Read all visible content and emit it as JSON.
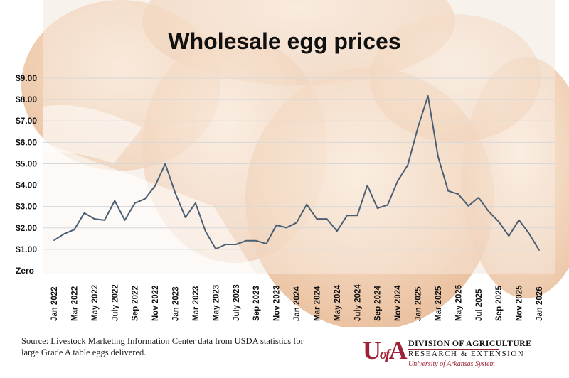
{
  "chart_data": {
    "type": "line",
    "title": "Wholesale egg prices",
    "xlabel": "",
    "ylabel": "",
    "ylim": [
      0,
      9
    ],
    "y_ticks": [
      {
        "value": 0,
        "label": "Zero"
      },
      {
        "value": 1,
        "label": "$1.00"
      },
      {
        "value": 2,
        "label": "$2.00"
      },
      {
        "value": 3,
        "label": "$3.00"
      },
      {
        "value": 4,
        "label": "$4.00"
      },
      {
        "value": 5,
        "label": "$5.00"
      },
      {
        "value": 6,
        "label": "$6.00"
      },
      {
        "value": 7,
        "label": "$7.00"
      },
      {
        "value": 8,
        "label": "$8.00"
      },
      {
        "value": 9,
        "label": "$9.00"
      }
    ],
    "x_tick_labels": [
      {
        "index": 0,
        "label": "Jan 2022"
      },
      {
        "index": 2,
        "label": "Mar 2022"
      },
      {
        "index": 4,
        "label": "May 2022"
      },
      {
        "index": 6,
        "label": "July 2022"
      },
      {
        "index": 8,
        "label": "Sep 2022"
      },
      {
        "index": 10,
        "label": "Nov 2022"
      },
      {
        "index": 12,
        "label": "Jan 2023"
      },
      {
        "index": 14,
        "label": "Mar 2023"
      },
      {
        "index": 16,
        "label": "May 2023"
      },
      {
        "index": 18,
        "label": "July 2023"
      },
      {
        "index": 20,
        "label": "Sep 2023"
      },
      {
        "index": 22,
        "label": "Nov 2023"
      },
      {
        "index": 24,
        "label": "Jan 2024"
      },
      {
        "index": 26,
        "label": "Mar 2024"
      },
      {
        "index": 28,
        "label": "May 2024"
      },
      {
        "index": 30,
        "label": "July 2024"
      },
      {
        "index": 32,
        "label": "Sep 2024"
      },
      {
        "index": 34,
        "label": "Nov 2024"
      },
      {
        "index": 36,
        "label": "Jan 2025"
      },
      {
        "index": 38,
        "label": "Mar 2025"
      },
      {
        "index": 40,
        "label": "May 2025"
      },
      {
        "index": 42,
        "label": "Jul 2025"
      },
      {
        "index": 44,
        "label": "Sep 2025"
      },
      {
        "index": 46,
        "label": "Nov 2025"
      },
      {
        "index": 48,
        "label": "Jan 2026"
      }
    ],
    "series": [
      {
        "values": [
          1.42,
          1.72,
          1.92,
          2.7,
          2.42,
          2.36,
          3.27,
          2.36,
          3.16,
          3.36,
          3.97,
          4.99,
          3.62,
          2.49,
          3.16,
          1.83,
          1.02,
          1.23,
          1.23,
          1.4,
          1.4,
          1.26,
          2.13,
          2.01,
          2.25,
          3.1,
          2.42,
          2.42,
          1.85,
          2.58,
          2.58,
          3.99,
          2.92,
          3.07,
          4.19,
          4.94,
          6.69,
          8.17,
          5.33,
          3.73,
          3.58,
          3.03,
          3.42,
          2.77,
          2.29,
          1.62,
          2.37,
          1.74,
          0.96
        ]
      }
    ],
    "colors": {
      "line": "#4a5f73",
      "grid": "#d8d8d8"
    },
    "grid": true,
    "legend": "none"
  },
  "footer": {
    "source": "Source: Livestock Marketing Information Center data from USDA statistics for large Grade A table eggs delivered."
  },
  "logo": {
    "mark_u": "U",
    "mark_of": "of",
    "mark_a": "A",
    "line1": "DIVISION OF AGRICULTURE",
    "line2": "RESEARCH & EXTENSION",
    "line3": "University of Arkansas System"
  }
}
